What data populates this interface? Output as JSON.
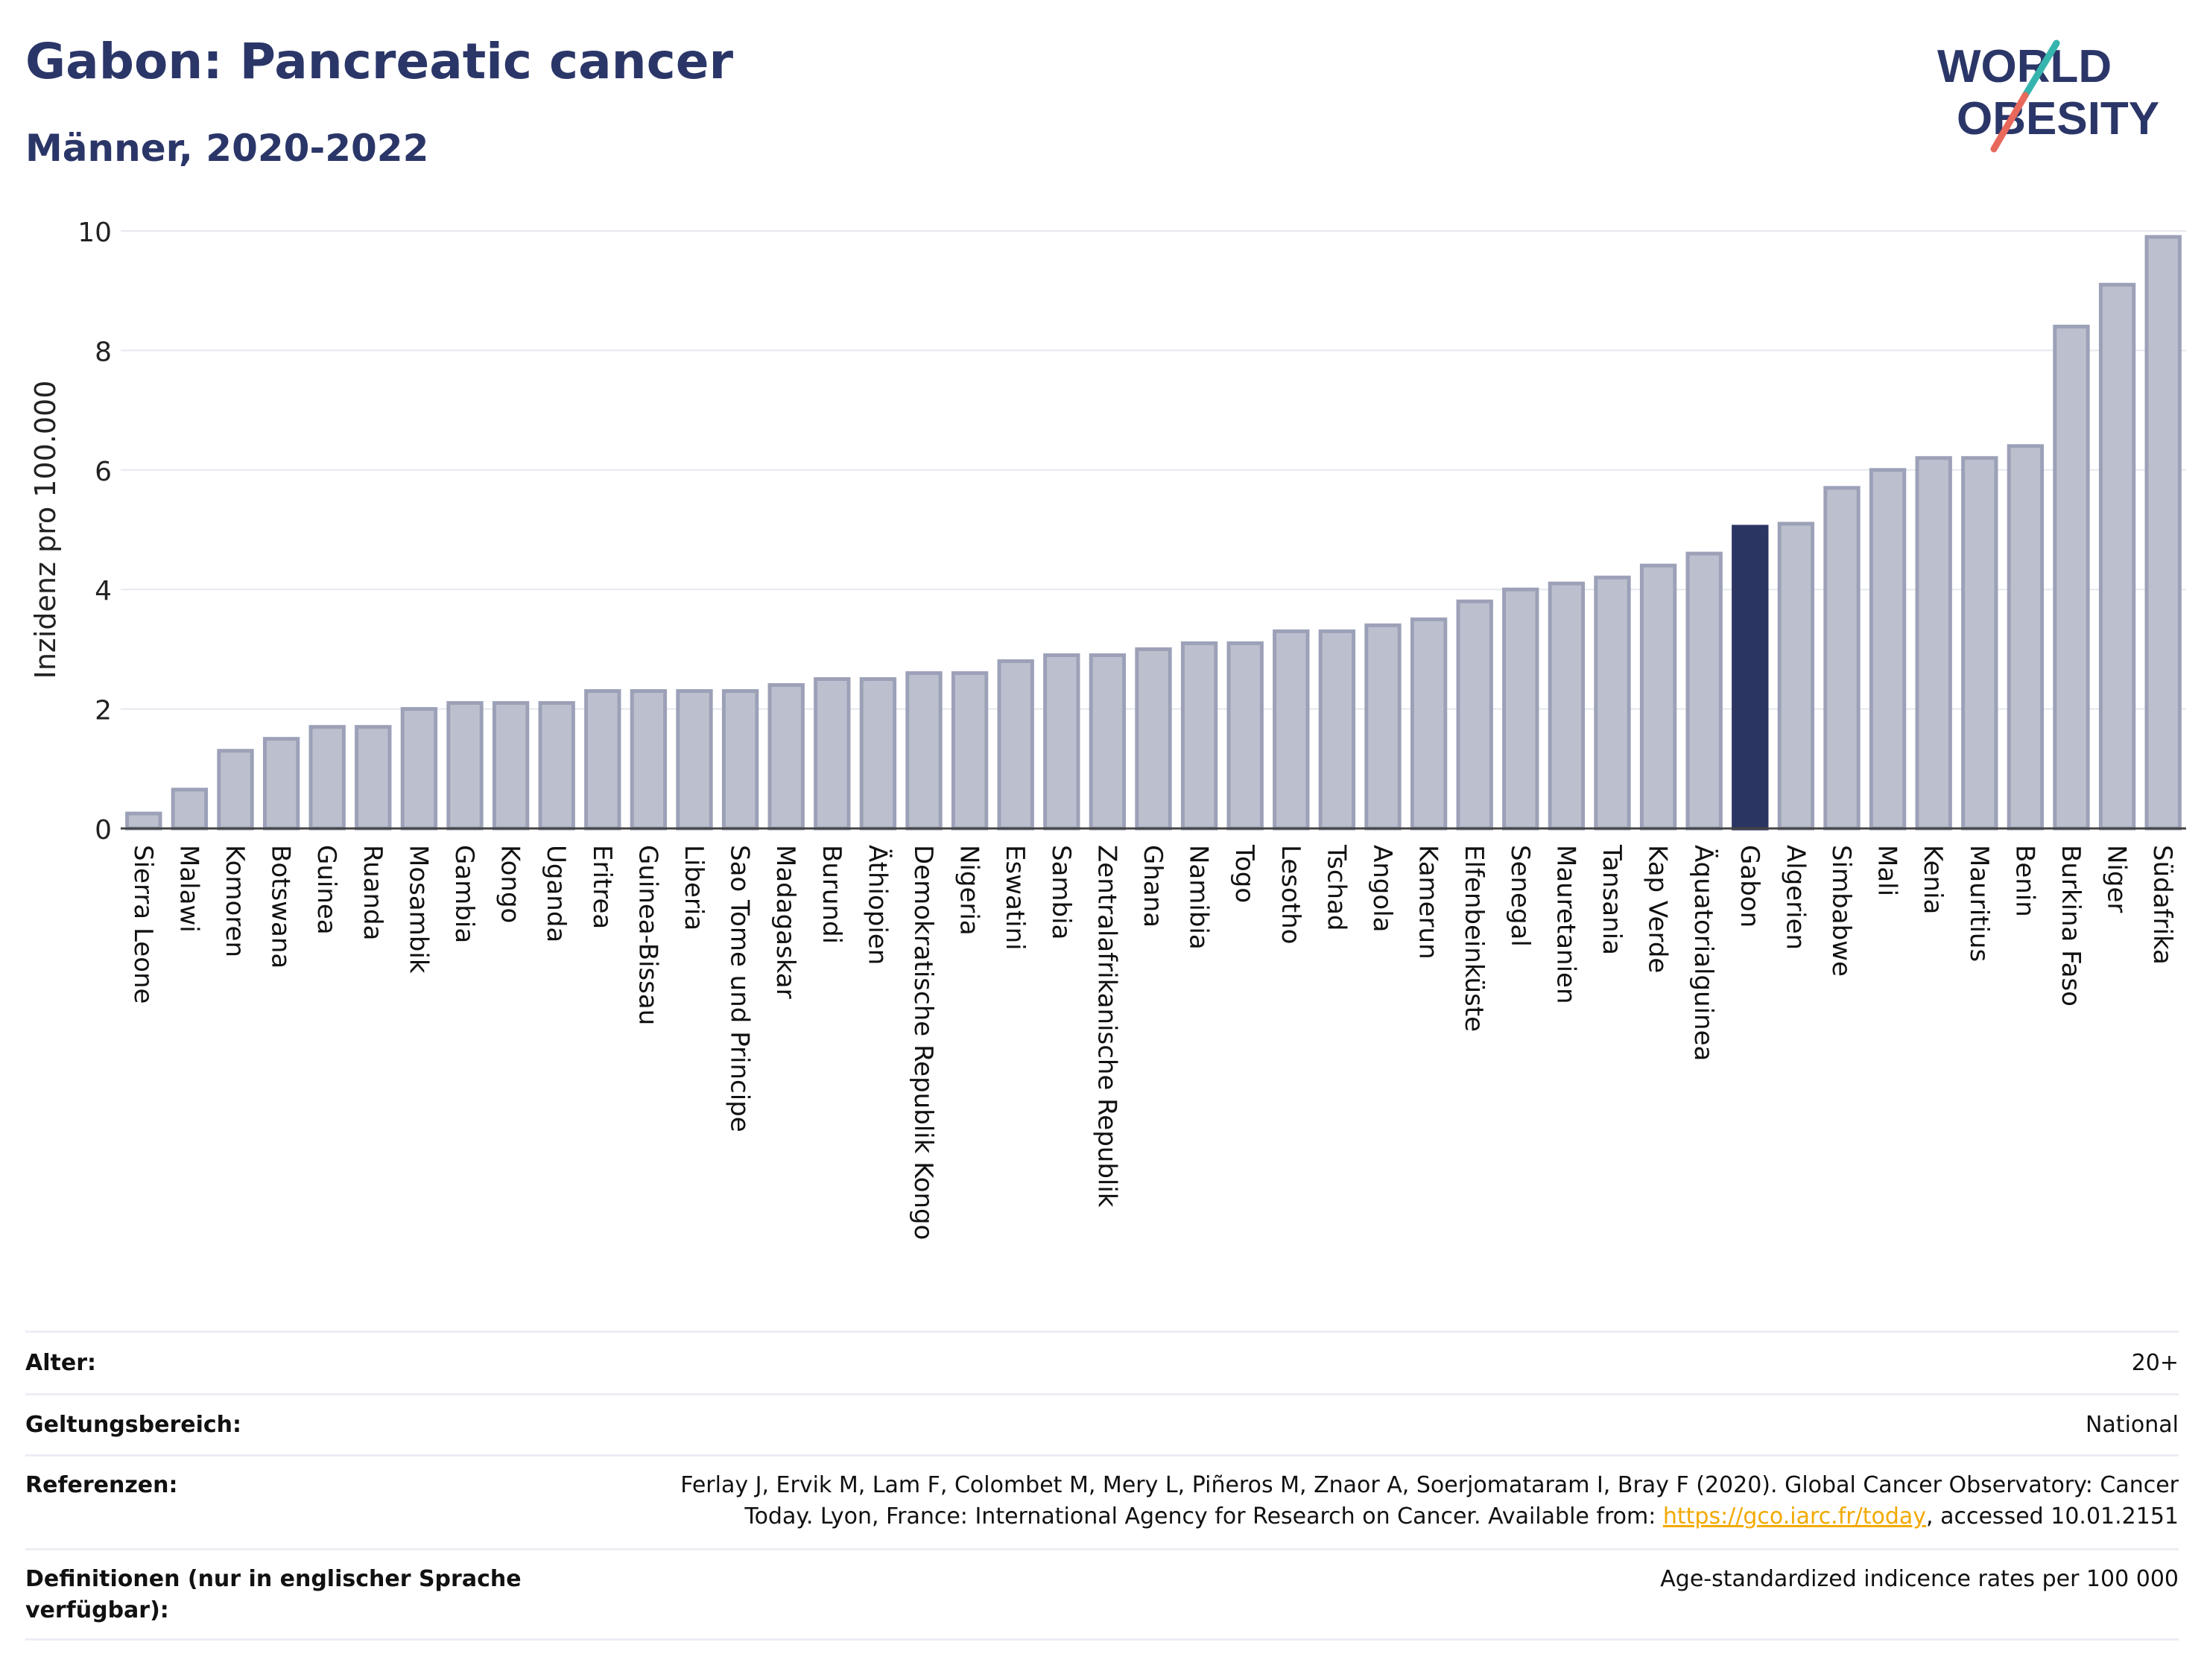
{
  "header": {
    "title": "Gabon: Pancreatic cancer",
    "subtitle": "Männer, 2020-2022",
    "logo_line1": "WORLD",
    "logo_line2": "OBESITY"
  },
  "chart_data": {
    "type": "bar",
    "ylabel": "Inzidenz pro 100.000",
    "ylim": [
      0,
      10
    ],
    "yticks": [
      "0",
      "2",
      "4",
      "6",
      "8",
      "10"
    ],
    "highlight": "Gabon",
    "grid": true,
    "colors": {
      "bar_fill": "#bcc0ce",
      "bar_stroke": "#9ca1b8",
      "highlight": "#2b3562",
      "grid": "#e6e8ef",
      "axis": "#444444"
    },
    "categories": [
      "Sierra Leone",
      "Malawi",
      "Komoren",
      "Botswana",
      "Guinea",
      "Ruanda",
      "Mosambik",
      "Gambia",
      "Kongo",
      "Uganda",
      "Eritrea",
      "Guinea-Bissau",
      "Liberia",
      "Sao Tome und Principe",
      "Madagaskar",
      "Burundi",
      "Äthiopien",
      "Demokratische Republik Kongo",
      "Nigeria",
      "Eswatini",
      "Sambia",
      "Zentralafrikanische Republik",
      "Ghana",
      "Namibia",
      "Togo",
      "Lesotho",
      "Tschad",
      "Angola",
      "Kamerun",
      "Elfenbeinküste",
      "Senegal",
      "Mauretanien",
      "Tansania",
      "Kap Verde",
      "Äquatorialguinea",
      "Gabon",
      "Algerien",
      "Simbabwe",
      "Mali",
      "Kenia",
      "Mauritius",
      "Benin",
      "Burkina Faso",
      "Niger",
      "Südafrika"
    ],
    "values": [
      0.25,
      0.65,
      1.3,
      1.5,
      1.7,
      1.7,
      2.0,
      2.1,
      2.1,
      2.1,
      2.3,
      2.3,
      2.3,
      2.3,
      2.4,
      2.5,
      2.5,
      2.6,
      2.6,
      2.8,
      2.9,
      2.9,
      3.0,
      3.1,
      3.1,
      3.3,
      3.3,
      3.4,
      3.5,
      3.8,
      4.0,
      4.1,
      4.2,
      4.4,
      4.6,
      5.05,
      5.1,
      5.7,
      6.0,
      6.2,
      6.2,
      6.4,
      8.4,
      9.1,
      9.9
    ]
  },
  "meta": {
    "rows": [
      {
        "key": "Alter:",
        "value": "20+"
      },
      {
        "key": "Geltungsbereich:",
        "value": "National"
      },
      {
        "key": "Referenzen:",
        "value_line1": "Ferlay J, Ervik M, Lam F, Colombet M, Mery L, Piñeros M, Znaor A, Soerjomataram I, Bray F (2020). Global Cancer Observatory: Cancer",
        "value_pre": "Today. Lyon, France: International Agency for Research on Cancer. Available from: ",
        "link": "https://gco.iarc.fr/today",
        "value_post": ", accessed 10.01.2151"
      },
      {
        "key": "Definitionen (nur in englischer Sprache verfügbar):",
        "value": "Age-standardized indicence rates per 100 000"
      }
    ]
  }
}
